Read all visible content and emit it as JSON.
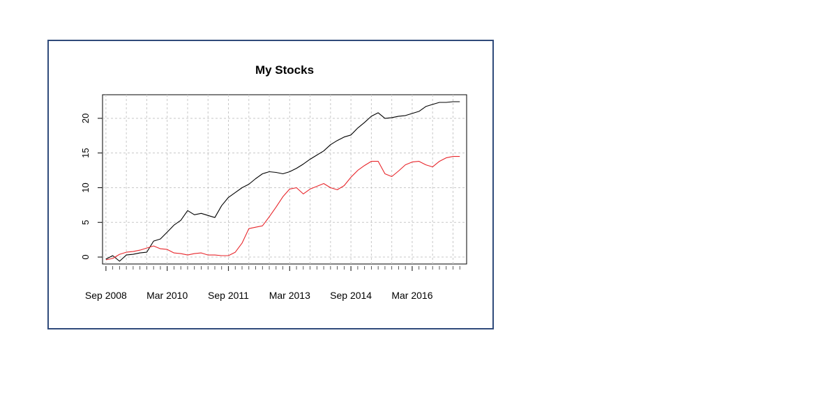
{
  "chart_data": {
    "type": "line",
    "title": "My Stocks",
    "xlabel": "",
    "ylabel": "",
    "x_tick_labels": [
      "Sep 2008",
      "Mar 2010",
      "Sep 2011",
      "Mar 2013",
      "Sep 2014",
      "Mar 2016"
    ],
    "y_tick_labels": [
      "0",
      "5",
      "10",
      "15",
      "20"
    ],
    "y_ticks": [
      0,
      5,
      10,
      15,
      20
    ],
    "ylim": [
      -1,
      23.4
    ],
    "xlim": [
      "2008-08",
      "2017-07"
    ],
    "grid": true,
    "legend": "none",
    "x": [
      "2008-09",
      "2008-11",
      "2009-01",
      "2009-03",
      "2009-05",
      "2009-07",
      "2009-09",
      "2009-11",
      "2010-01",
      "2010-03",
      "2010-05",
      "2010-07",
      "2010-09",
      "2010-11",
      "2011-01",
      "2011-03",
      "2011-05",
      "2011-07",
      "2011-09",
      "2011-11",
      "2012-01",
      "2012-03",
      "2012-05",
      "2012-07",
      "2012-09",
      "2012-11",
      "2013-01",
      "2013-03",
      "2013-05",
      "2013-07",
      "2013-09",
      "2013-11",
      "2014-01",
      "2014-03",
      "2014-05",
      "2014-07",
      "2014-09",
      "2014-11",
      "2015-01",
      "2015-03",
      "2015-05",
      "2015-07",
      "2015-09",
      "2015-11",
      "2016-01",
      "2016-03",
      "2016-05",
      "2016-07",
      "2016-09",
      "2016-11",
      "2017-01",
      "2017-03",
      "2017-05"
    ],
    "series": [
      {
        "color": "#000000",
        "values": [
          -0.3,
          0.2,
          -0.6,
          0.3,
          0.4,
          0.6,
          0.7,
          2.3,
          2.6,
          3.6,
          4.6,
          5.3,
          6.7,
          6.1,
          6.3,
          6.0,
          5.7,
          7.4,
          8.6,
          9.3,
          10.0,
          10.5,
          11.3,
          12.0,
          12.3,
          12.2,
          12.0,
          12.3,
          12.8,
          13.4,
          14.1,
          14.7,
          15.3,
          16.2,
          16.8,
          17.3,
          17.6,
          18.6,
          19.4,
          20.3,
          20.8,
          20.0,
          20.1,
          20.3,
          20.4,
          20.7,
          21.0,
          21.7,
          22.0,
          22.3,
          22.3,
          22.4,
          22.4
        ]
      },
      {
        "color": "#e8262b",
        "values": [
          -0.4,
          -0.2,
          0.4,
          0.7,
          0.8,
          1.0,
          1.3,
          1.6,
          1.2,
          1.1,
          0.6,
          0.5,
          0.3,
          0.5,
          0.6,
          0.3,
          0.3,
          0.2,
          0.2,
          0.7,
          2.0,
          4.1,
          4.3,
          4.5,
          5.8,
          7.2,
          8.7,
          9.8,
          10.0,
          9.1,
          9.8,
          10.2,
          10.6,
          10.0,
          9.7,
          10.3,
          11.5,
          12.5,
          13.2,
          13.8,
          13.8,
          12.0,
          11.6,
          12.4,
          13.3,
          13.7,
          13.8,
          13.3,
          13.0,
          13.8,
          14.3,
          14.5,
          14.5
        ]
      }
    ]
  }
}
